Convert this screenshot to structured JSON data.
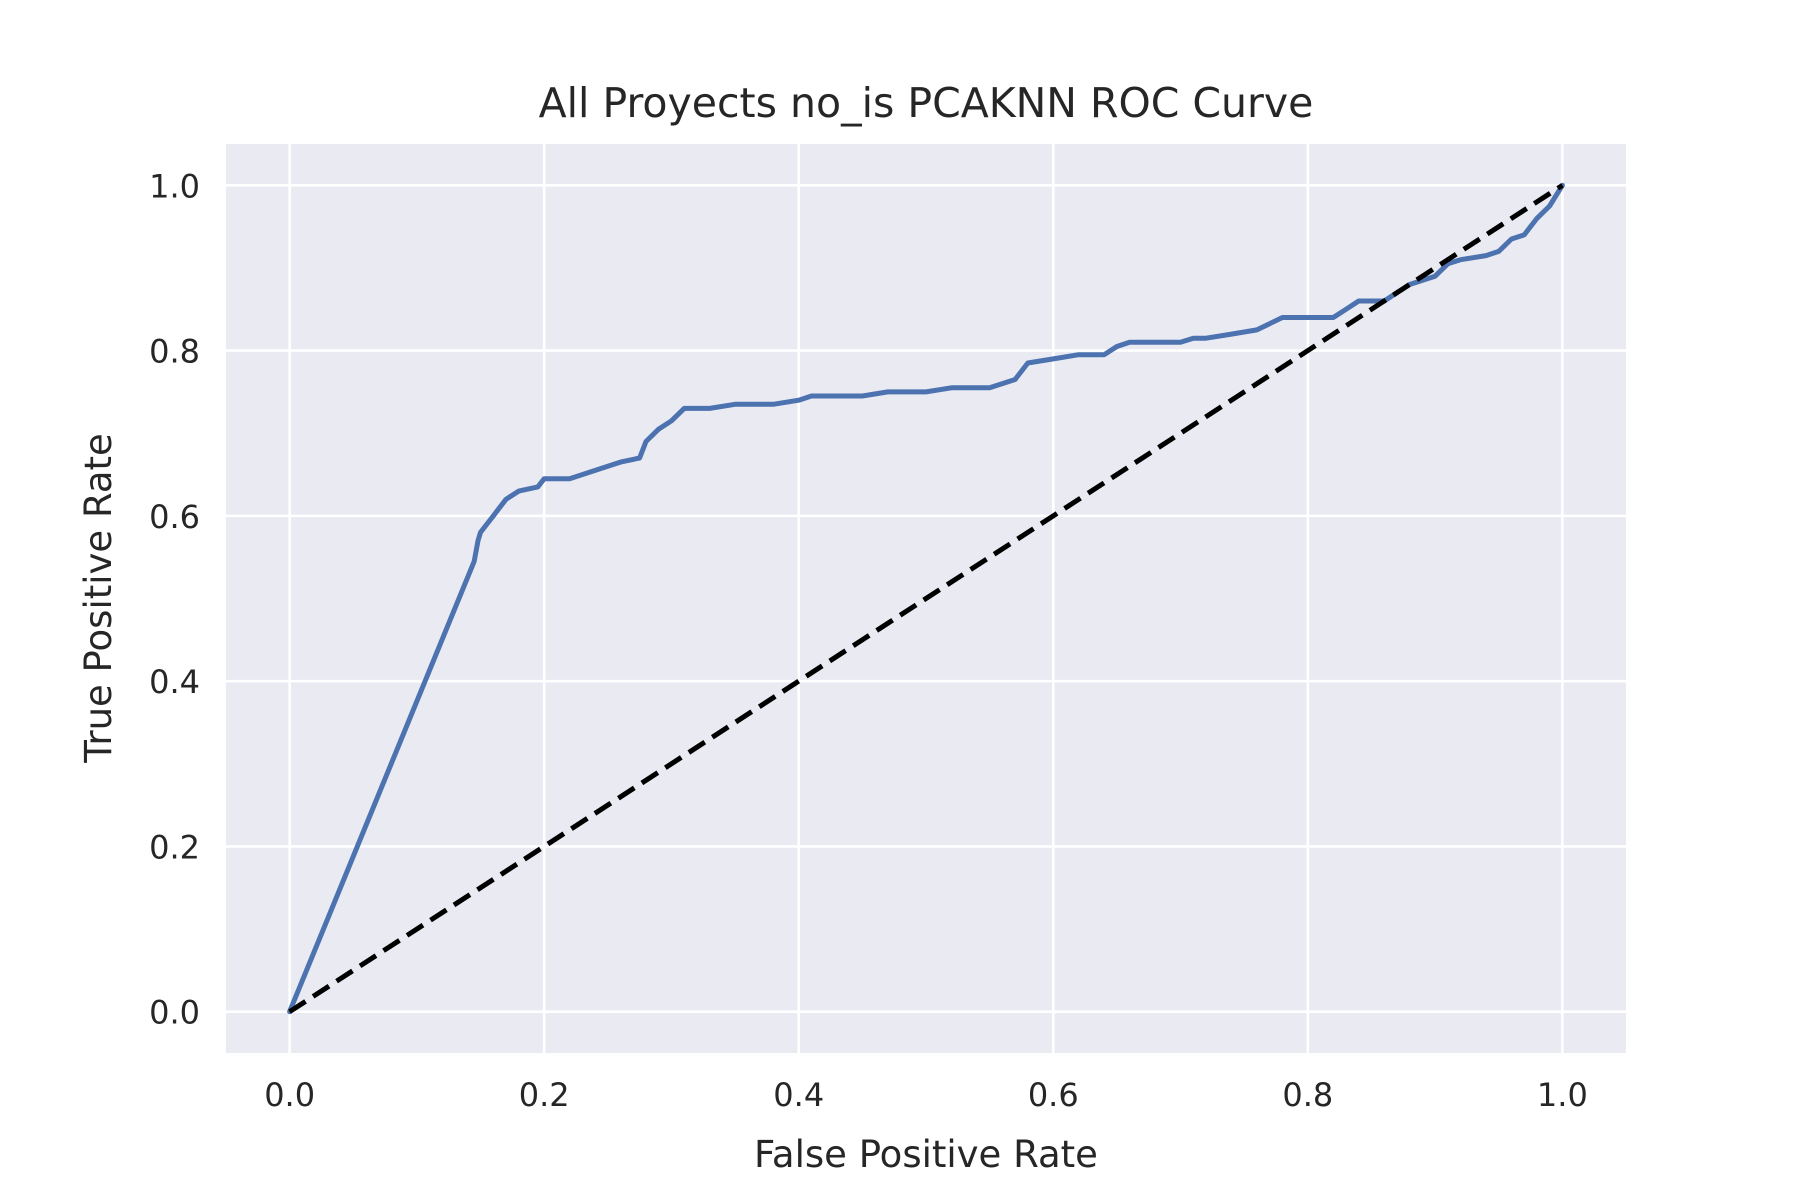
{
  "chart_data": {
    "type": "line",
    "title": "All Proyects no_is PCAKNN ROC Curve",
    "xlabel": "False Positive Rate",
    "ylabel": "True Positive Rate",
    "xlim": [
      -0.05,
      1.05
    ],
    "ylim": [
      -0.05,
      1.05
    ],
    "xticks": [
      "0.0",
      "0.2",
      "0.4",
      "0.6",
      "0.8",
      "1.0"
    ],
    "yticks": [
      "0.0",
      "0.2",
      "0.4",
      "0.6",
      "0.8",
      "1.0"
    ],
    "grid": true,
    "background": "#eaeaf2",
    "series": [
      {
        "color": "#4c72b0",
        "style": "solid",
        "x": [
          0.0,
          0.145,
          0.148,
          0.15,
          0.155,
          0.16,
          0.165,
          0.17,
          0.18,
          0.195,
          0.2,
          0.22,
          0.25,
          0.26,
          0.275,
          0.28,
          0.29,
          0.3,
          0.31,
          0.33,
          0.35,
          0.38,
          0.4,
          0.41,
          0.45,
          0.47,
          0.5,
          0.52,
          0.55,
          0.57,
          0.58,
          0.6,
          0.62,
          0.64,
          0.65,
          0.66,
          0.7,
          0.71,
          0.72,
          0.74,
          0.76,
          0.78,
          0.8,
          0.82,
          0.83,
          0.84,
          0.86,
          0.87,
          0.88,
          0.9,
          0.91,
          0.92,
          0.94,
          0.95,
          0.96,
          0.97,
          0.98,
          0.99,
          1.0
        ],
        "y": [
          0.0,
          0.545,
          0.57,
          0.58,
          0.59,
          0.6,
          0.61,
          0.62,
          0.63,
          0.635,
          0.645,
          0.645,
          0.66,
          0.665,
          0.67,
          0.69,
          0.705,
          0.715,
          0.73,
          0.73,
          0.735,
          0.735,
          0.74,
          0.745,
          0.745,
          0.75,
          0.75,
          0.755,
          0.755,
          0.765,
          0.785,
          0.79,
          0.795,
          0.795,
          0.805,
          0.81,
          0.81,
          0.815,
          0.815,
          0.82,
          0.825,
          0.84,
          0.84,
          0.84,
          0.85,
          0.86,
          0.86,
          0.87,
          0.88,
          0.89,
          0.905,
          0.91,
          0.915,
          0.92,
          0.935,
          0.94,
          0.96,
          0.975,
          1.0
        ]
      },
      {
        "color": "#000000",
        "style": "dashed",
        "x": [
          0.0,
          1.0
        ],
        "y": [
          0.0,
          1.0
        ]
      }
    ]
  }
}
